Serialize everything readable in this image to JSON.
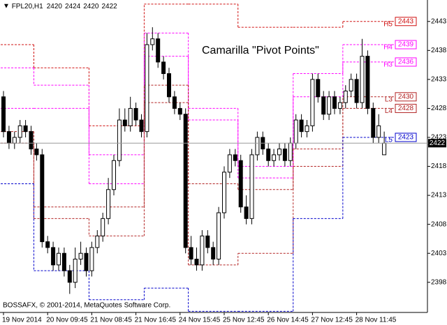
{
  "symbol": "FPL20,H1",
  "title": "Camarilla \"Pivot Points\"",
  "copyright": "BOSSAFX, © 2001-2014, MetaQuotes Software Corp.",
  "chart_data": {
    "type": "candlestick",
    "categories": [
      "19 Nov 2014",
      null,
      null,
      null,
      null,
      null,
      null,
      null,
      "20 Nov 09:45",
      null,
      null,
      null,
      null,
      null,
      null,
      null,
      "21 Nov 08:45",
      null,
      null,
      null,
      null,
      null,
      null,
      null,
      "21 Nov 16:45",
      null,
      null,
      null,
      null,
      null,
      null,
      null,
      "24 Nov 15:45",
      null,
      null,
      null,
      null,
      null,
      null,
      null,
      "25 Nov 12:45",
      null,
      null,
      null,
      null,
      null,
      null,
      null,
      "26 Nov 14:45",
      null,
      null,
      null,
      null,
      null,
      null,
      null,
      "27 Nov 12:45",
      null,
      null,
      null,
      null,
      null,
      null,
      null,
      "28 Nov 11:45",
      null,
      null,
      null,
      null,
      null
    ],
    "open": [
      2430,
      2424,
      2422,
      2423,
      2425,
      2424,
      2421,
      2420,
      2405,
      2404,
      2401,
      2403,
      2400,
      2398,
      2402,
      2403,
      2400,
      2404,
      2406,
      2409,
      2414,
      2419,
      2426,
      2425,
      2428,
      2426,
      2424,
      2439,
      2440,
      2436,
      2434,
      2430,
      2428,
      2427,
      2404,
      2402,
      2401,
      2406,
      2404,
      2402,
      2410,
      2417,
      2420,
      2419,
      2411,
      2409,
      2420,
      2423,
      2421,
      2419,
      2420,
      2421,
      2419,
      2422,
      2426,
      2424,
      2425,
      2433,
      2430,
      2427,
      2430,
      2428,
      2429,
      2431,
      2433,
      2429,
      2437,
      2428,
      2423,
      2420
    ],
    "high": [
      2431,
      2425,
      2424,
      2426,
      2426,
      2425,
      2422,
      2421,
      2406,
      2405,
      2404,
      2404,
      2401,
      2404,
      2405,
      2404,
      2405,
      2407,
      2410,
      2416,
      2420,
      2428,
      2428,
      2430,
      2429,
      2427,
      2441,
      2442,
      2441,
      2437,
      2435,
      2431,
      2429,
      2428,
      2406,
      2404,
      2407,
      2407,
      2405,
      2411,
      2418,
      2421,
      2421,
      2420,
      2413,
      2421,
      2424,
      2424,
      2422,
      2421,
      2422,
      2422,
      2423,
      2427,
      2427,
      2426,
      2434,
      2434,
      2431,
      2431,
      2431,
      2430,
      2432,
      2434,
      2434,
      2440,
      2438,
      2429,
      2427,
      2424
    ],
    "low": [
      2423,
      2421,
      2421,
      2422,
      2423,
      2420,
      2419,
      2404,
      2403,
      2400,
      2400,
      2399,
      2396,
      2397,
      2401,
      2399,
      2399,
      2403,
      2405,
      2408,
      2413,
      2418,
      2424,
      2424,
      2425,
      2423,
      2423,
      2438,
      2435,
      2433,
      2429,
      2427,
      2426,
      2403,
      2401,
      2400,
      2400,
      2403,
      2401,
      2401,
      2409,
      2416,
      2418,
      2410,
      2408,
      2408,
      2419,
      2420,
      2418,
      2418,
      2419,
      2418,
      2418,
      2421,
      2423,
      2423,
      2424,
      2429,
      2426,
      2426,
      2427,
      2427,
      2428,
      2430,
      2428,
      2428,
      2427,
      2422,
      2422,
      2420
    ],
    "close": [
      2424,
      2422,
      2423,
      2425,
      2424,
      2421,
      2420,
      2405,
      2404,
      2401,
      2403,
      2400,
      2398,
      2402,
      2403,
      2400,
      2404,
      2406,
      2409,
      2414,
      2419,
      2426,
      2425,
      2428,
      2426,
      2424,
      2439,
      2440,
      2436,
      2434,
      2430,
      2428,
      2427,
      2404,
      2402,
      2401,
      2406,
      2404,
      2402,
      2410,
      2417,
      2420,
      2419,
      2411,
      2409,
      2420,
      2423,
      2421,
      2419,
      2420,
      2421,
      2419,
      2422,
      2426,
      2424,
      2425,
      2433,
      2430,
      2427,
      2430,
      2428,
      2429,
      2431,
      2433,
      2429,
      2437,
      2428,
      2423,
      2425,
      2422
    ],
    "ylim": [
      2392.8,
      2446.7
    ],
    "yticks": [
      2443,
      2438,
      2433,
      2428,
      2423,
      2418,
      2413,
      2408,
      2403,
      2398
    ],
    "pivot_breaks": [
      0,
      6,
      16,
      26,
      34,
      43,
      53,
      62,
      70
    ],
    "pivot_series": [
      {
        "name": "H5",
        "color": "#d01010",
        "values": [
          2439,
          2435,
          2425,
          2446,
          2446,
          2442,
          2442,
          2443
        ]
      },
      {
        "name": "H4",
        "color": "#ff00ff",
        "values": [
          2435,
          2432,
          2420,
          2441,
          2428,
          2418,
          2434,
          2439
        ]
      },
      {
        "name": "H3",
        "color": "#ff00ff",
        "values": [
          2428,
          2428,
          2415,
          2437,
          2426,
          2416,
          2430,
          2436
        ]
      },
      {
        "name": "L3",
        "color": "#b22222",
        "values": [
          2424,
          2411,
          2411,
          2432,
          2415,
          2414,
          2421,
          2430
        ]
      },
      {
        "name": "L4",
        "color": "#b22222",
        "values": [
          2422,
          2409,
          2406,
          2429,
          2401,
          2403,
          2418,
          2428
        ]
      },
      {
        "name": "L5",
        "color": "#0000cc",
        "values": [
          2415,
          2400,
          2395,
          2397,
          2393,
          2393,
          2409,
          2423
        ]
      }
    ]
  }
}
